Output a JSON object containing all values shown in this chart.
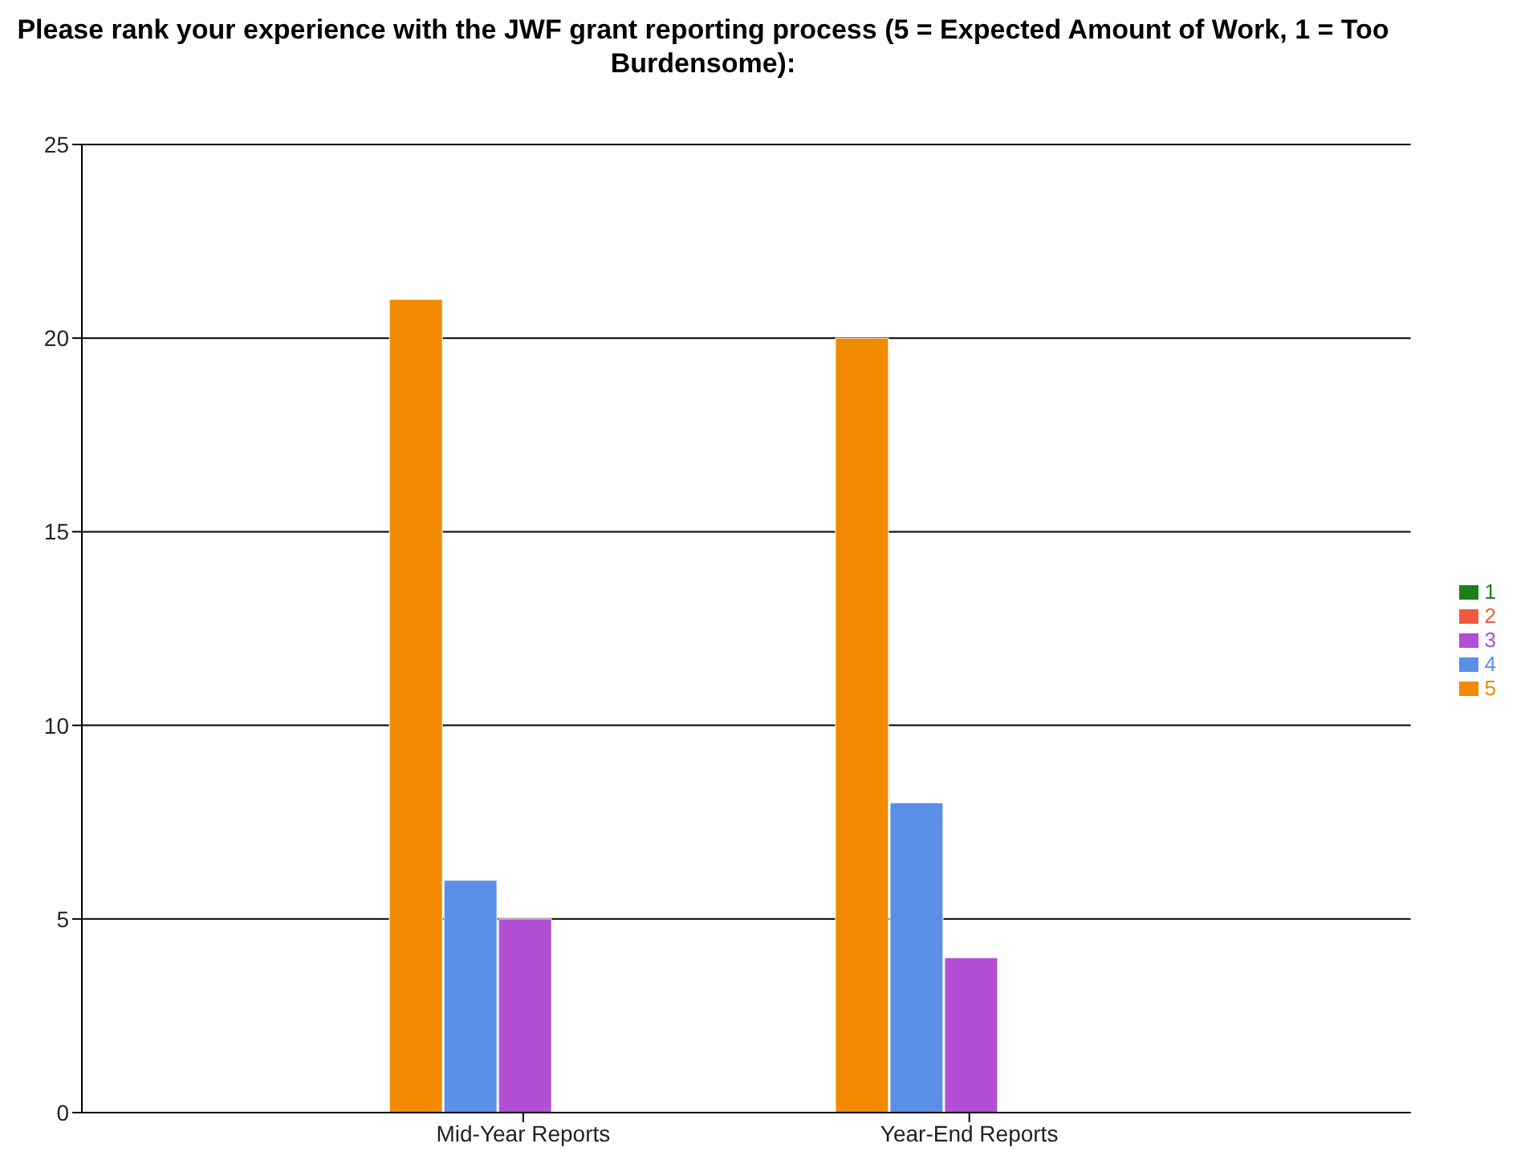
{
  "chart_data": {
    "type": "bar",
    "title": "Please rank your experience with the JWF grant reporting process (5 = Expected Amount of Work, 1 = Too Burdensome):",
    "categories": [
      "Mid-Year Reports",
      "Year-End Reports"
    ],
    "series": [
      {
        "name": "5",
        "color": "#f28a00",
        "values": [
          21,
          20
        ]
      },
      {
        "name": "4",
        "color": "#5b8ee6",
        "values": [
          6,
          8
        ]
      },
      {
        "name": "3",
        "color": "#b24fd4",
        "values": [
          5,
          4
        ]
      },
      {
        "name": "2",
        "color": "#ee5a3c",
        "values": [
          0,
          0
        ]
      },
      {
        "name": "1",
        "color": "#1e7e1e",
        "values": [
          0,
          0
        ]
      }
    ],
    "ylim": [
      0,
      25
    ],
    "yticks": [
      0,
      5,
      10,
      15,
      20,
      25
    ],
    "grid": "y",
    "legend": "right"
  }
}
